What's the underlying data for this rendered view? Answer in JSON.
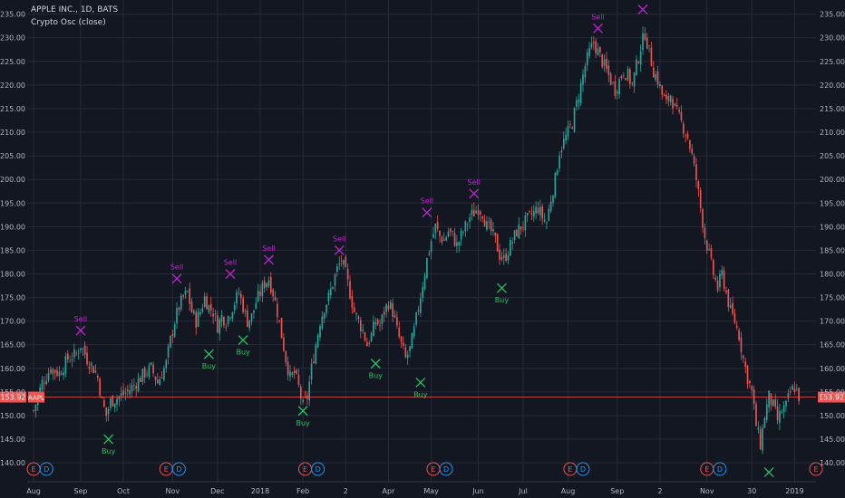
{
  "legend": {
    "symbol_line": "APPLE INC., 1D, BATS",
    "indicator_line": "Crypto Osc (close)"
  },
  "colors": {
    "background": "#131722",
    "grid": "#262b37",
    "up_candle": "#26a69a",
    "down_candle": "#ef5350",
    "sell_marker": "#c026d3",
    "buy_marker": "#22c55e",
    "price_line": "#ef5350",
    "earnings_badge": "#ef5350",
    "dividend_badge": "#2196f3",
    "axis_text": "#b2b5be"
  },
  "chart_data": {
    "type": "candlestick",
    "ylim": [
      136,
      238
    ],
    "y_ticks": [
      140,
      145,
      150,
      155,
      160,
      165,
      170,
      175,
      180,
      185,
      190,
      195,
      200,
      205,
      210,
      215,
      220,
      225,
      230,
      235
    ],
    "y_tick_labels": [
      "140.00",
      "145.00",
      "150.00",
      "155.00",
      "160.00",
      "165.00",
      "170.00",
      "175.00",
      "180.00",
      "185.00",
      "190.00",
      "195.00",
      "200.00",
      "205.00",
      "210.00",
      "215.00",
      "220.00",
      "225.00",
      "230.00",
      "235.00"
    ],
    "x_labels": [
      {
        "label": "Aug",
        "day": 0
      },
      {
        "label": "Sep",
        "day": 22
      },
      {
        "label": "Oct",
        "day": 42
      },
      {
        "label": "Nov",
        "day": 65
      },
      {
        "label": "Dec",
        "day": 86
      },
      {
        "label": "2018",
        "day": 106
      },
      {
        "label": "Feb",
        "day": 126
      },
      {
        "label": "2",
        "day": 146
      },
      {
        "label": "Apr",
        "day": 166
      },
      {
        "label": "May",
        "day": 186
      },
      {
        "label": "Jun",
        "day": 208
      },
      {
        "label": "Jul",
        "day": 229
      },
      {
        "label": "Aug",
        "day": 250
      },
      {
        "label": "Sep",
        "day": 273
      },
      {
        "label": "2",
        "day": 293
      },
      {
        "label": "Nov",
        "day": 315
      },
      {
        "label": "30",
        "day": 336
      },
      {
        "label": "2019",
        "day": 356
      }
    ],
    "day_range": [
      -3,
      366
    ],
    "close_path": [
      [
        0,
        151
      ],
      [
        4,
        157
      ],
      [
        8,
        160
      ],
      [
        12,
        159
      ],
      [
        16,
        162
      ],
      [
        20,
        163
      ],
      [
        22,
        165
      ],
      [
        25,
        162
      ],
      [
        28,
        160
      ],
      [
        30,
        158
      ],
      [
        32,
        153
      ],
      [
        34,
        150
      ],
      [
        36,
        153
      ],
      [
        40,
        154
      ],
      [
        44,
        155
      ],
      [
        48,
        157
      ],
      [
        52,
        159
      ],
      [
        55,
        160
      ],
      [
        58,
        157
      ],
      [
        62,
        161
      ],
      [
        64,
        166
      ],
      [
        66,
        170
      ],
      [
        68,
        173
      ],
      [
        70,
        175
      ],
      [
        72,
        176
      ],
      [
        74,
        172
      ],
      [
        76,
        170
      ],
      [
        78,
        172
      ],
      [
        80,
        175
      ],
      [
        82,
        173
      ],
      [
        84,
        172
      ],
      [
        86,
        169
      ],
      [
        88,
        171
      ],
      [
        90,
        170
      ],
      [
        92,
        172
      ],
      [
        94,
        174
      ],
      [
        96,
        176
      ],
      [
        98,
        173
      ],
      [
        100,
        170
      ],
      [
        102,
        171
      ],
      [
        104,
        174
      ],
      [
        106,
        176
      ],
      [
        108,
        178
      ],
      [
        110,
        179
      ],
      [
        112,
        176
      ],
      [
        114,
        172
      ],
      [
        116,
        167
      ],
      [
        118,
        162
      ],
      [
        120,
        158
      ],
      [
        122,
        159
      ],
      [
        124,
        156
      ],
      [
        126,
        152
      ],
      [
        128,
        154
      ],
      [
        130,
        160
      ],
      [
        132,
        165
      ],
      [
        134,
        170
      ],
      [
        136,
        173
      ],
      [
        138,
        175
      ],
      [
        140,
        178
      ],
      [
        142,
        181
      ],
      [
        144,
        183
      ],
      [
        146,
        180
      ],
      [
        148,
        176
      ],
      [
        150,
        172
      ],
      [
        152,
        170
      ],
      [
        154,
        168
      ],
      [
        156,
        165
      ],
      [
        158,
        167
      ],
      [
        160,
        170
      ],
      [
        162,
        169
      ],
      [
        164,
        172
      ],
      [
        166,
        174
      ],
      [
        168,
        172
      ],
      [
        170,
        168
      ],
      [
        172,
        165
      ],
      [
        174,
        162
      ],
      [
        176,
        164
      ],
      [
        178,
        168
      ],
      [
        180,
        173
      ],
      [
        182,
        178
      ],
      [
        184,
        183
      ],
      [
        186,
        187
      ],
      [
        188,
        190
      ],
      [
        190,
        188
      ],
      [
        192,
        187
      ],
      [
        194,
        189
      ],
      [
        196,
        188
      ],
      [
        198,
        186
      ],
      [
        200,
        188
      ],
      [
        202,
        190
      ],
      [
        204,
        192
      ],
      [
        206,
        193
      ],
      [
        208,
        194
      ],
      [
        210,
        193
      ],
      [
        212,
        190
      ],
      [
        214,
        189
      ],
      [
        216,
        187
      ],
      [
        218,
        184
      ],
      [
        220,
        183
      ],
      [
        222,
        185
      ],
      [
        224,
        187
      ],
      [
        226,
        189
      ],
      [
        228,
        190
      ],
      [
        230,
        191
      ],
      [
        232,
        192
      ],
      [
        234,
        193
      ],
      [
        236,
        194
      ],
      [
        238,
        192
      ],
      [
        240,
        191
      ],
      [
        242,
        196
      ],
      [
        244,
        200
      ],
      [
        246,
        206
      ],
      [
        248,
        208
      ],
      [
        250,
        210
      ],
      [
        252,
        212
      ],
      [
        254,
        216
      ],
      [
        256,
        220
      ],
      [
        258,
        224
      ],
      [
        260,
        227
      ],
      [
        262,
        229
      ],
      [
        264,
        227
      ],
      [
        266,
        225
      ],
      [
        268,
        223
      ],
      [
        270,
        221
      ],
      [
        272,
        219
      ],
      [
        274,
        221
      ],
      [
        276,
        223
      ],
      [
        278,
        222
      ],
      [
        280,
        220
      ],
      [
        282,
        224
      ],
      [
        284,
        228
      ],
      [
        286,
        231
      ],
      [
        288,
        227
      ],
      [
        290,
        223
      ],
      [
        292,
        221
      ],
      [
        294,
        218
      ],
      [
        296,
        216
      ],
      [
        298,
        218
      ],
      [
        300,
        215
      ],
      [
        302,
        213
      ],
      [
        304,
        211
      ],
      [
        306,
        209
      ],
      [
        308,
        205
      ],
      [
        310,
        200
      ],
      [
        312,
        194
      ],
      [
        314,
        188
      ],
      [
        316,
        184
      ],
      [
        318,
        180
      ],
      [
        320,
        177
      ],
      [
        322,
        180
      ],
      [
        324,
        176
      ],
      [
        326,
        172
      ],
      [
        328,
        170
      ],
      [
        330,
        167
      ],
      [
        332,
        162
      ],
      [
        334,
        158
      ],
      [
        336,
        155
      ],
      [
        338,
        148
      ],
      [
        340,
        144
      ],
      [
        342,
        150
      ],
      [
        344,
        154
      ],
      [
        346,
        152
      ],
      [
        348,
        149
      ],
      [
        350,
        151
      ],
      [
        352,
        152
      ],
      [
        354,
        155
      ],
      [
        356,
        156
      ],
      [
        358,
        154
      ]
    ],
    "sell_signals": [
      {
        "label": "Sell",
        "day": 22,
        "price": 168
      },
      {
        "label": "Sell",
        "day": 67,
        "price": 179
      },
      {
        "label": "Sell",
        "day": 92,
        "price": 180
      },
      {
        "label": "Sell",
        "day": 110,
        "price": 183
      },
      {
        "label": "Sell",
        "day": 143,
        "price": 185
      },
      {
        "label": "Sell",
        "day": 184,
        "price": 193
      },
      {
        "label": "Sell",
        "day": 206,
        "price": 197
      },
      {
        "label": "Sell",
        "day": 264,
        "price": 232
      },
      {
        "label": "",
        "day": 285,
        "price": 236
      }
    ],
    "buy_signals": [
      {
        "label": "Buy",
        "day": 35,
        "price": 145
      },
      {
        "label": "Buy",
        "day": 82,
        "price": 163
      },
      {
        "label": "Buy",
        "day": 98,
        "price": 166
      },
      {
        "label": "Buy",
        "day": 126,
        "price": 151
      },
      {
        "label": "Buy",
        "day": 160,
        "price": 161
      },
      {
        "label": "Buy",
        "day": 181,
        "price": 157
      },
      {
        "label": "Buy",
        "day": 219,
        "price": 177
      },
      {
        "label": "",
        "day": 344,
        "price": 138
      }
    ],
    "last_price": {
      "value": 153.92,
      "label": "153.92",
      "symbol": "AAPL"
    },
    "events": [
      {
        "type": "E",
        "day": 0
      },
      {
        "type": "D",
        "day": 6
      },
      {
        "type": "E",
        "day": 62
      },
      {
        "type": "D",
        "day": 68
      },
      {
        "type": "E",
        "day": 127
      },
      {
        "type": "D",
        "day": 133
      },
      {
        "type": "E",
        "day": 187
      },
      {
        "type": "D",
        "day": 193
      },
      {
        "type": "E",
        "day": 251
      },
      {
        "type": "D",
        "day": 257
      },
      {
        "type": "E",
        "day": 315
      },
      {
        "type": "D",
        "day": 321
      },
      {
        "type": "E",
        "day": 366
      }
    ]
  }
}
